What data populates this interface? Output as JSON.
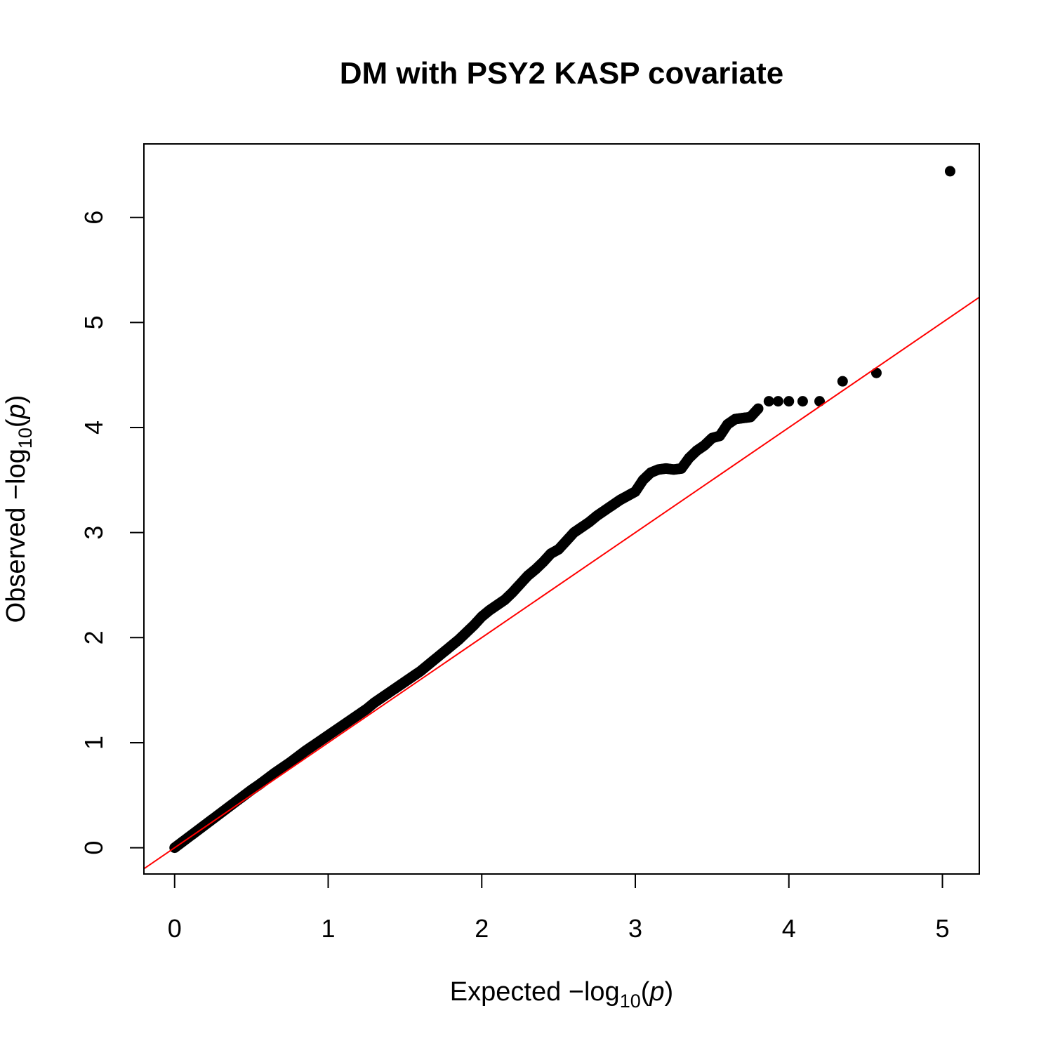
{
  "chart_data": {
    "type": "scatter",
    "title": "DM with PSY2 KASP covariate",
    "xlabel": {
      "prefix": "Expected  −log",
      "sub": "10",
      "paren_open": "(",
      "var": "p",
      "paren_close": ")"
    },
    "ylabel": {
      "prefix": "Observed  −log",
      "sub": "10",
      "paren_open": "(",
      "var": "p",
      "paren_close": ")"
    },
    "xlim": [
      -0.2,
      5.24
    ],
    "ylim": [
      -0.25,
      6.7
    ],
    "x_ticks": [
      0,
      1,
      2,
      3,
      4,
      5
    ],
    "x_tick_labels": [
      "0",
      "1",
      "2",
      "3",
      "4",
      "5"
    ],
    "y_ticks": [
      0,
      1,
      2,
      3,
      4,
      5,
      6
    ],
    "y_tick_labels": [
      "0",
      "1",
      "2",
      "3",
      "4",
      "5",
      "6"
    ],
    "grid": false,
    "reference_line": {
      "intercept": 0,
      "slope": 1,
      "color": "#ff0000"
    },
    "point_color": "#000000",
    "series": [
      {
        "x": [
          0,
          0.05,
          0.1,
          0.15,
          0.2,
          0.25,
          0.3,
          0.35,
          0.4,
          0.45,
          0.5,
          0.55,
          0.6,
          0.65,
          0.7,
          0.75,
          0.8,
          0.85,
          0.9,
          0.95,
          1.0,
          1.05,
          1.1,
          1.15,
          1.2,
          1.25,
          1.3,
          1.35,
          1.4,
          1.45,
          1.5,
          1.55,
          1.6,
          1.65,
          1.7,
          1.75,
          1.8,
          1.85,
          1.9,
          1.95,
          2.0,
          2.05,
          2.1,
          2.15,
          2.2,
          2.25,
          2.3,
          2.35,
          2.4,
          2.45,
          2.5,
          2.55,
          2.6,
          2.65,
          2.7,
          2.75,
          2.8,
          2.85,
          2.9,
          2.95,
          3.0,
          3.05,
          3.1,
          3.15,
          3.2,
          3.25,
          3.3,
          3.35,
          3.4,
          3.45,
          3.5,
          3.55,
          3.6,
          3.65,
          3.7,
          3.75,
          3.8,
          3.87,
          3.93,
          4.0,
          4.09,
          4.2,
          4.35,
          4.57,
          5.05
        ],
        "y": [
          0,
          0.055,
          0.11,
          0.165,
          0.22,
          0.275,
          0.33,
          0.385,
          0.44,
          0.495,
          0.55,
          0.6,
          0.655,
          0.71,
          0.76,
          0.81,
          0.865,
          0.92,
          0.97,
          1.02,
          1.07,
          1.12,
          1.17,
          1.22,
          1.27,
          1.32,
          1.38,
          1.43,
          1.48,
          1.53,
          1.58,
          1.63,
          1.68,
          1.74,
          1.8,
          1.86,
          1.92,
          1.98,
          2.05,
          2.12,
          2.2,
          2.26,
          2.31,
          2.36,
          2.43,
          2.51,
          2.59,
          2.65,
          2.72,
          2.8,
          2.84,
          2.92,
          3.0,
          3.05,
          3.1,
          3.16,
          3.21,
          3.26,
          3.31,
          3.35,
          3.39,
          3.5,
          3.57,
          3.6,
          3.61,
          3.6,
          3.61,
          3.71,
          3.78,
          3.83,
          3.9,
          3.92,
          4.03,
          4.08,
          4.09,
          4.1,
          4.18,
          4.25,
          4.25,
          4.25,
          4.25,
          4.25,
          4.44,
          4.52,
          6.44
        ]
      }
    ]
  }
}
